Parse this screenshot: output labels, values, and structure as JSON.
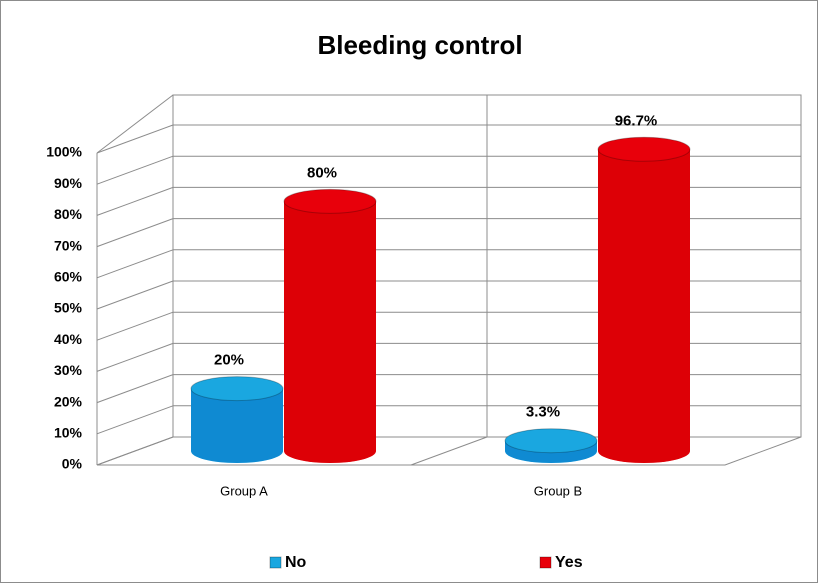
{
  "chart_data": {
    "type": "bar3d",
    "title": "Bleeding control",
    "categories": [
      "Group A",
      "Group B"
    ],
    "series": [
      {
        "name": "No",
        "color": "#1aa7e0",
        "values": [
          20,
          3.3
        ],
        "value_labels": [
          "20%",
          "3.3%"
        ]
      },
      {
        "name": "Yes",
        "color": "#e8000b",
        "values": [
          80,
          96.7
        ],
        "value_labels": [
          "80%",
          "96.7%"
        ]
      }
    ],
    "ylim": [
      0,
      100
    ],
    "yticks": [
      {
        "value": 0,
        "label": "0%"
      },
      {
        "value": 10,
        "label": "10%"
      },
      {
        "value": 20,
        "label": "20%"
      },
      {
        "value": 30,
        "label": "30%"
      },
      {
        "value": 40,
        "label": "40%"
      },
      {
        "value": 50,
        "label": "50%"
      },
      {
        "value": 60,
        "label": "60%"
      },
      {
        "value": 70,
        "label": "70%"
      },
      {
        "value": 80,
        "label": "80%"
      },
      {
        "value": 90,
        "label": "90%"
      },
      {
        "value": 100,
        "label": "100%"
      }
    ],
    "grid": true,
    "legend": "bottom"
  }
}
